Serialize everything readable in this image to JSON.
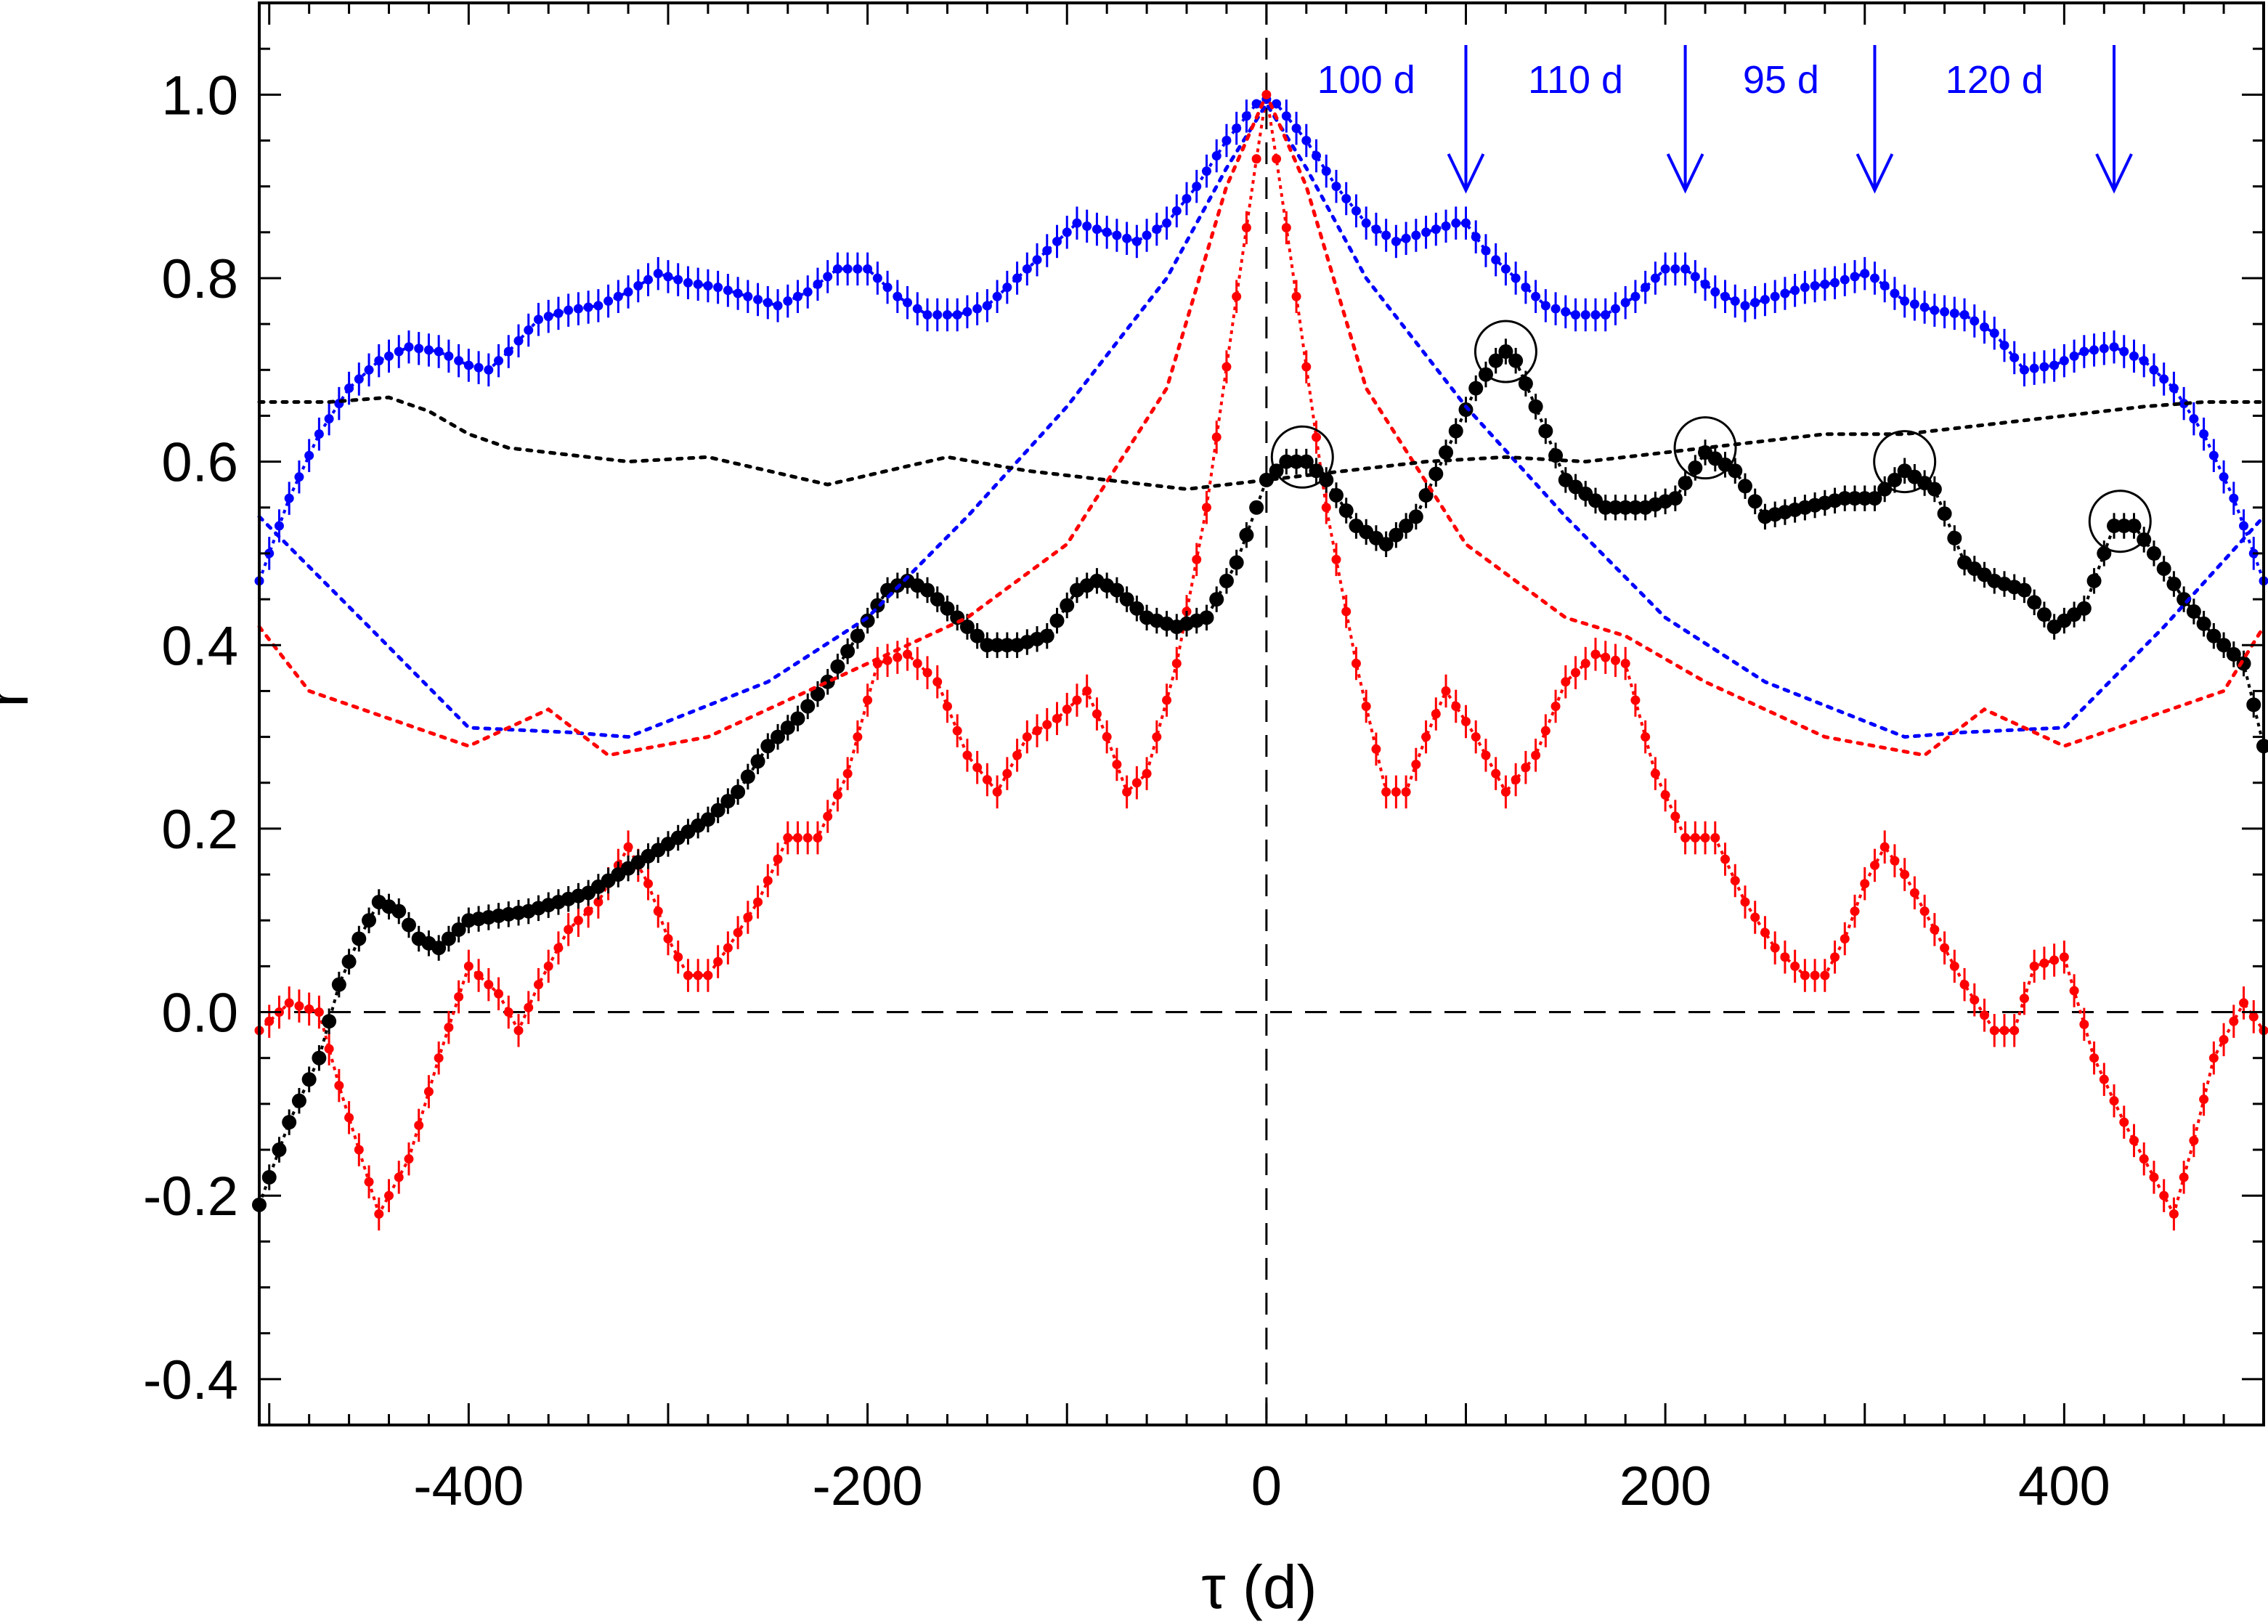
{
  "chart_data": {
    "type": "scatter",
    "xlabel": "τ (d)",
    "ylabel": "r",
    "xlim": [
      -505,
      500
    ],
    "ylim": [
      -0.45,
      1.1
    ],
    "x_ticks": [
      {
        "value": -400,
        "label": "-400"
      },
      {
        "value": -200,
        "label": "-200"
      },
      {
        "value": 0,
        "label": "0"
      },
      {
        "value": 200,
        "label": "200"
      },
      {
        "value": 400,
        "label": "400"
      }
    ],
    "y_ticks": [
      {
        "value": -0.4,
        "label": "-0.4"
      },
      {
        "value": -0.2,
        "label": "-0.2"
      },
      {
        "value": 0.0,
        "label": "0.0"
      },
      {
        "value": 0.2,
        "label": "0.2"
      },
      {
        "value": 0.4,
        "label": "0.4"
      },
      {
        "value": 0.6,
        "label": "0.6"
      },
      {
        "value": 0.8,
        "label": "0.8"
      },
      {
        "value": 1.0,
        "label": "1.0"
      }
    ],
    "reference_lines": [
      {
        "axis": "y",
        "value": 0.0,
        "style": "dashed"
      },
      {
        "axis": "x",
        "value": 0,
        "style": "dashed"
      }
    ],
    "accent_color": "#0000ff",
    "series": [
      {
        "name": "blue ACF",
        "color": "#0000ff",
        "marker": "small-dot",
        "errorbars": true,
        "x": [
          -505,
          -490,
          -475,
          -460,
          -445,
          -430,
          -415,
          -400,
          -390,
          -380,
          -365,
          -350,
          -335,
          -320,
          -305,
          -290,
          -275,
          -260,
          -245,
          -230,
          -215,
          -200,
          -185,
          -170,
          -155,
          -140,
          -125,
          -110,
          -95,
          -80,
          -65,
          -50,
          -35,
          -20,
          -5,
          0,
          5,
          20,
          35,
          50,
          65,
          80,
          95,
          100,
          110,
          125,
          140,
          155,
          170,
          185,
          200,
          210,
          225,
          240,
          255,
          270,
          285,
          300,
          305,
          320,
          335,
          350,
          365,
          380,
          395,
          410,
          425,
          440,
          455,
          470,
          485,
          500
        ],
        "y": [
          0.47,
          0.56,
          0.63,
          0.68,
          0.71,
          0.725,
          0.72,
          0.705,
          0.7,
          0.72,
          0.755,
          0.765,
          0.77,
          0.785,
          0.805,
          0.795,
          0.79,
          0.78,
          0.77,
          0.785,
          0.81,
          0.81,
          0.78,
          0.76,
          0.76,
          0.77,
          0.8,
          0.83,
          0.86,
          0.85,
          0.84,
          0.86,
          0.9,
          0.95,
          0.99,
          0.995,
          0.99,
          0.95,
          0.9,
          0.86,
          0.84,
          0.85,
          0.86,
          0.86,
          0.83,
          0.8,
          0.77,
          0.76,
          0.76,
          0.78,
          0.81,
          0.81,
          0.785,
          0.77,
          0.78,
          0.79,
          0.795,
          0.805,
          0.8,
          0.775,
          0.765,
          0.76,
          0.74,
          0.7,
          0.705,
          0.72,
          0.725,
          0.71,
          0.68,
          0.63,
          0.56,
          0.47
        ]
      },
      {
        "name": "red ACF",
        "color": "#ff0000",
        "marker": "small-dot",
        "errorbars": true,
        "x": [
          -505,
          -490,
          -475,
          -465,
          -455,
          -445,
          -430,
          -415,
          -400,
          -385,
          -375,
          -365,
          -350,
          -335,
          -320,
          -310,
          -300,
          -290,
          -280,
          -270,
          -255,
          -240,
          -225,
          -210,
          -195,
          -180,
          -165,
          -150,
          -135,
          -120,
          -105,
          -90,
          -80,
          -70,
          -60,
          -45,
          -30,
          -15,
          -5,
          0,
          5,
          15,
          30,
          45,
          60,
          70,
          80,
          90,
          105,
          120,
          135,
          150,
          165,
          180,
          195,
          210,
          225,
          240,
          255,
          270,
          280,
          290,
          300,
          310,
          320,
          335,
          350,
          365,
          375,
          385,
          400,
          415,
          430,
          445,
          455,
          465,
          475,
          490,
          500
        ],
        "y": [
          -0.02,
          0.01,
          0.0,
          -0.08,
          -0.15,
          -0.22,
          -0.16,
          -0.05,
          0.05,
          0.02,
          -0.02,
          0.03,
          0.09,
          0.12,
          0.18,
          0.14,
          0.08,
          0.04,
          0.04,
          0.07,
          0.12,
          0.19,
          0.19,
          0.26,
          0.38,
          0.39,
          0.36,
          0.28,
          0.24,
          0.3,
          0.32,
          0.35,
          0.3,
          0.24,
          0.26,
          0.38,
          0.55,
          0.78,
          0.93,
          1.0,
          0.93,
          0.78,
          0.55,
          0.38,
          0.24,
          0.24,
          0.3,
          0.35,
          0.3,
          0.24,
          0.28,
          0.36,
          0.39,
          0.38,
          0.26,
          0.19,
          0.19,
          0.12,
          0.07,
          0.04,
          0.04,
          0.08,
          0.14,
          0.18,
          0.15,
          0.09,
          0.03,
          -0.02,
          -0.02,
          0.05,
          0.06,
          -0.05,
          -0.12,
          -0.18,
          -0.22,
          -0.14,
          -0.05,
          0.01,
          -0.02
        ]
      },
      {
        "name": "black CCF",
        "color": "#000000",
        "marker": "large-dot",
        "errorbars": true,
        "x": [
          -505,
          -490,
          -475,
          -465,
          -455,
          -445,
          -435,
          -425,
          -415,
          -400,
          -385,
          -370,
          -355,
          -340,
          -325,
          -310,
          -295,
          -280,
          -265,
          -250,
          -235,
          -220,
          -205,
          -190,
          -180,
          -170,
          -155,
          -140,
          -125,
          -110,
          -95,
          -85,
          -75,
          -60,
          -45,
          -30,
          -15,
          -5,
          0,
          10,
          20,
          30,
          45,
          60,
          75,
          90,
          105,
          115,
          120,
          125,
          135,
          150,
          170,
          190,
          205,
          220,
          235,
          250,
          270,
          290,
          305,
          320,
          335,
          350,
          365,
          380,
          395,
          410,
          425,
          435,
          445,
          460,
          475,
          490,
          500
        ],
        "y": [
          -0.21,
          -0.12,
          -0.05,
          0.03,
          0.08,
          0.12,
          0.11,
          0.08,
          0.07,
          0.1,
          0.105,
          0.11,
          0.12,
          0.13,
          0.15,
          0.17,
          0.19,
          0.21,
          0.24,
          0.29,
          0.32,
          0.36,
          0.41,
          0.46,
          0.47,
          0.46,
          0.43,
          0.4,
          0.4,
          0.41,
          0.46,
          0.47,
          0.46,
          0.43,
          0.42,
          0.43,
          0.49,
          0.55,
          0.58,
          0.6,
          0.6,
          0.58,
          0.53,
          0.51,
          0.54,
          0.61,
          0.68,
          0.71,
          0.72,
          0.71,
          0.66,
          0.58,
          0.55,
          0.55,
          0.56,
          0.61,
          0.59,
          0.54,
          0.55,
          0.56,
          0.56,
          0.59,
          0.57,
          0.49,
          0.47,
          0.46,
          0.42,
          0.44,
          0.53,
          0.53,
          0.5,
          0.45,
          0.41,
          0.38,
          0.29
        ]
      },
      {
        "name": "blue reference (dotted)",
        "color": "#0000ff",
        "marker": "none",
        "style": "dotted",
        "x": [
          -505,
          -450,
          -400,
          -350,
          -320,
          -250,
          -200,
          -150,
          -100,
          -50,
          -20,
          0,
          20,
          50,
          100,
          150,
          200,
          250,
          320,
          350,
          400,
          450,
          500
        ],
        "y": [
          0.54,
          0.42,
          0.31,
          0.305,
          0.3,
          0.36,
          0.43,
          0.54,
          0.66,
          0.8,
          0.92,
          0.99,
          0.92,
          0.8,
          0.66,
          0.54,
          0.43,
          0.36,
          0.3,
          0.305,
          0.31,
          0.42,
          0.54
        ]
      },
      {
        "name": "red reference (dotted)",
        "color": "#ff0000",
        "marker": "none",
        "style": "dotted",
        "x": [
          -505,
          -480,
          -440,
          -400,
          -360,
          -330,
          -280,
          -220,
          -150,
          -100,
          -50,
          -20,
          0,
          20,
          50,
          100,
          150,
          180,
          220,
          280,
          330,
          360,
          400,
          440,
          480,
          500
        ],
        "y": [
          0.42,
          0.35,
          0.32,
          0.29,
          0.33,
          0.28,
          0.3,
          0.36,
          0.43,
          0.51,
          0.68,
          0.9,
          1.0,
          0.9,
          0.68,
          0.51,
          0.43,
          0.41,
          0.36,
          0.3,
          0.28,
          0.33,
          0.29,
          0.32,
          0.35,
          0.42
        ]
      },
      {
        "name": "black reference (dotted)",
        "color": "#000000",
        "marker": "none",
        "style": "dotted",
        "x": [
          -505,
          -470,
          -440,
          -420,
          -400,
          -380,
          -360,
          -320,
          -280,
          -250,
          -220,
          -190,
          -160,
          -120,
          -80,
          -40,
          0,
          40,
          80,
          120,
          160,
          200,
          240,
          280,
          320,
          360,
          400,
          440,
          470,
          500
        ],
        "y": [
          0.665,
          0.665,
          0.67,
          0.655,
          0.63,
          0.615,
          0.61,
          0.6,
          0.605,
          0.59,
          0.575,
          0.59,
          0.605,
          0.59,
          0.58,
          0.57,
          0.58,
          0.59,
          0.6,
          0.605,
          0.6,
          0.61,
          0.62,
          0.63,
          0.63,
          0.64,
          0.65,
          0.66,
          0.665,
          0.665
        ]
      }
    ],
    "circled_peaks": [
      {
        "x": 18,
        "y": 0.605
      },
      {
        "x": 120,
        "y": 0.72
      },
      {
        "x": 220,
        "y": 0.615
      },
      {
        "x": 320,
        "y": 0.6
      },
      {
        "x": 428,
        "y": 0.535
      }
    ],
    "period_annotations": {
      "color": "#0000ff",
      "labels": [
        {
          "text": "100 d",
          "x": 50
        },
        {
          "text": "110 d",
          "x": 155
        },
        {
          "text": "95 d",
          "x": 258
        },
        {
          "text": "120 d",
          "x": 365
        }
      ],
      "arrows": [
        100,
        210,
        305,
        425
      ]
    }
  }
}
